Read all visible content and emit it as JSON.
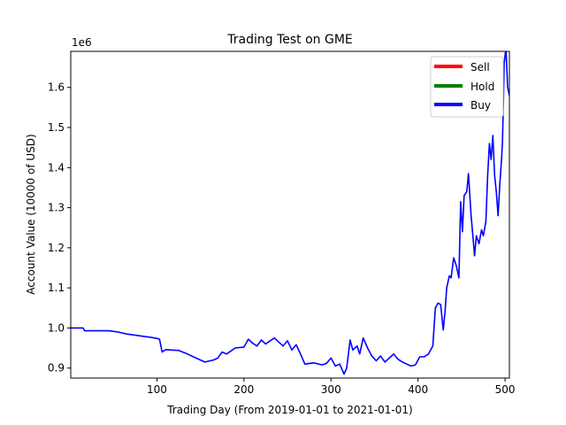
{
  "chart_data": {
    "type": "line",
    "title": "Trading Test on GME",
    "xlabel": "Trading Day (From 2019-01-01 to 2021-01-01)",
    "ylabel": "Account Value (10000 of USD)",
    "y_offset_text": "1e6",
    "xlim": [
      1,
      505
    ],
    "ylim": [
      875000,
      1690000
    ],
    "x_ticks": [
      100,
      200,
      300,
      400,
      500
    ],
    "x_tick_labels": [
      "100",
      "200",
      "300",
      "400",
      "500"
    ],
    "y_ticks": [
      900000,
      1000000,
      1100000,
      1200000,
      1300000,
      1400000,
      1500000,
      1600000
    ],
    "y_tick_labels": [
      "0.9",
      "1.0",
      "1.1",
      "1.2",
      "1.3",
      "1.4",
      "1.5",
      "1.6"
    ],
    "grid": false,
    "legend_position": "top-right",
    "legend": [
      {
        "name": "Sell",
        "color": "#ff0000"
      },
      {
        "name": "Hold",
        "color": "#008000"
      },
      {
        "name": "Buy",
        "color": "#0000ff"
      }
    ],
    "series": [
      {
        "color": "#0000ff",
        "points": [
          [
            1,
            1000000
          ],
          [
            15,
            1000000
          ],
          [
            17,
            993000
          ],
          [
            30,
            993000
          ],
          [
            45,
            993000
          ],
          [
            55,
            990000
          ],
          [
            65,
            985000
          ],
          [
            75,
            982000
          ],
          [
            85,
            979000
          ],
          [
            95,
            976000
          ],
          [
            100,
            974000
          ],
          [
            103,
            972000
          ],
          [
            106,
            940000
          ],
          [
            110,
            946000
          ],
          [
            125,
            944000
          ],
          [
            135,
            935000
          ],
          [
            145,
            925000
          ],
          [
            155,
            915000
          ],
          [
            165,
            920000
          ],
          [
            170,
            925000
          ],
          [
            175,
            940000
          ],
          [
            180,
            935000
          ],
          [
            190,
            950000
          ],
          [
            200,
            952000
          ],
          [
            205,
            972000
          ],
          [
            210,
            962000
          ],
          [
            215,
            955000
          ],
          [
            220,
            970000
          ],
          [
            225,
            960000
          ],
          [
            230,
            968000
          ],
          [
            235,
            975000
          ],
          [
            240,
            965000
          ],
          [
            245,
            955000
          ],
          [
            250,
            968000
          ],
          [
            255,
            945000
          ],
          [
            260,
            958000
          ],
          [
            265,
            935000
          ],
          [
            270,
            910000
          ],
          [
            280,
            913000
          ],
          [
            290,
            908000
          ],
          [
            295,
            912000
          ],
          [
            300,
            925000
          ],
          [
            305,
            905000
          ],
          [
            310,
            910000
          ],
          [
            315,
            885000
          ],
          [
            318,
            900000
          ],
          [
            322,
            970000
          ],
          [
            325,
            945000
          ],
          [
            330,
            955000
          ],
          [
            333,
            935000
          ],
          [
            337,
            975000
          ],
          [
            342,
            950000
          ],
          [
            347,
            930000
          ],
          [
            352,
            918000
          ],
          [
            357,
            930000
          ],
          [
            362,
            915000
          ],
          [
            367,
            925000
          ],
          [
            372,
            935000
          ],
          [
            377,
            922000
          ],
          [
            382,
            915000
          ],
          [
            387,
            910000
          ],
          [
            392,
            905000
          ],
          [
            397,
            908000
          ],
          [
            402,
            928000
          ],
          [
            407,
            928000
          ],
          [
            412,
            935000
          ],
          [
            417,
            955000
          ],
          [
            420,
            1050000
          ],
          [
            423,
            1062000
          ],
          [
            426,
            1058000
          ],
          [
            429,
            995000
          ],
          [
            431,
            1040000
          ],
          [
            433,
            1100000
          ],
          [
            436,
            1130000
          ],
          [
            438,
            1125000
          ],
          [
            441,
            1175000
          ],
          [
            444,
            1155000
          ],
          [
            447,
            1125000
          ],
          [
            449,
            1315000
          ],
          [
            451,
            1240000
          ],
          [
            453,
            1330000
          ],
          [
            456,
            1340000
          ],
          [
            458,
            1385000
          ],
          [
            461,
            1280000
          ],
          [
            463,
            1230000
          ],
          [
            465,
            1180000
          ],
          [
            467,
            1230000
          ],
          [
            470,
            1210000
          ],
          [
            473,
            1245000
          ],
          [
            475,
            1230000
          ],
          [
            478,
            1265000
          ],
          [
            480,
            1380000
          ],
          [
            482,
            1460000
          ],
          [
            484,
            1420000
          ],
          [
            486,
            1480000
          ],
          [
            488,
            1380000
          ],
          [
            490,
            1340000
          ],
          [
            492,
            1280000
          ],
          [
            494,
            1360000
          ],
          [
            496,
            1420000
          ],
          [
            497,
            1460000
          ],
          [
            498,
            1550000
          ],
          [
            499,
            1660000
          ],
          [
            501,
            1700000
          ],
          [
            503,
            1600000
          ],
          [
            505,
            1580000
          ]
        ]
      }
    ]
  }
}
